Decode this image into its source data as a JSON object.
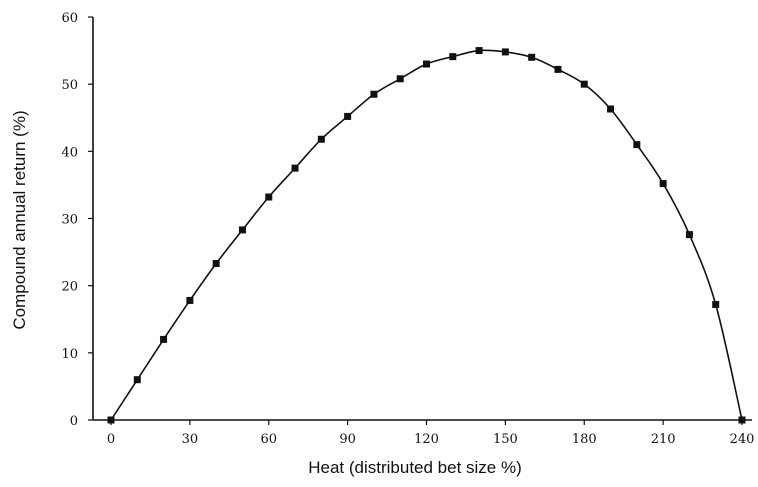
{
  "chart_data": {
    "type": "line",
    "title": "",
    "xlabel": "Heat (distributed bet size %)",
    "ylabel": "Compound annual return (%)",
    "xlim": [
      0,
      240
    ],
    "ylim": [
      0,
      60
    ],
    "x_ticks": [
      0,
      30,
      60,
      90,
      120,
      150,
      180,
      210,
      240
    ],
    "y_ticks": [
      0,
      10,
      20,
      30,
      40,
      50,
      60
    ],
    "x_tick_labels": [
      "0",
      "30",
      "60",
      "90",
      "120",
      "150",
      "180",
      "210",
      "240"
    ],
    "y_tick_labels": [
      "0",
      "10",
      "20",
      "30",
      "40",
      "50",
      "60"
    ],
    "grid": false,
    "marker": "square",
    "series": [
      {
        "x": [
          0,
          10,
          20,
          30,
          40,
          50,
          60,
          70,
          80,
          90,
          100,
          110,
          120,
          130,
          140,
          150,
          160,
          170,
          180,
          190,
          200,
          210,
          220,
          230,
          240
        ],
        "y": [
          0,
          6,
          12,
          17.8,
          23.3,
          28.3,
          33.2,
          37.5,
          41.8,
          45.2,
          48.5,
          50.8,
          53,
          54.1,
          55,
          54.8,
          54,
          52.2,
          50,
          46.3,
          41,
          35.2,
          27.6,
          17.2,
          0
        ],
        "color": "#111111"
      }
    ]
  }
}
